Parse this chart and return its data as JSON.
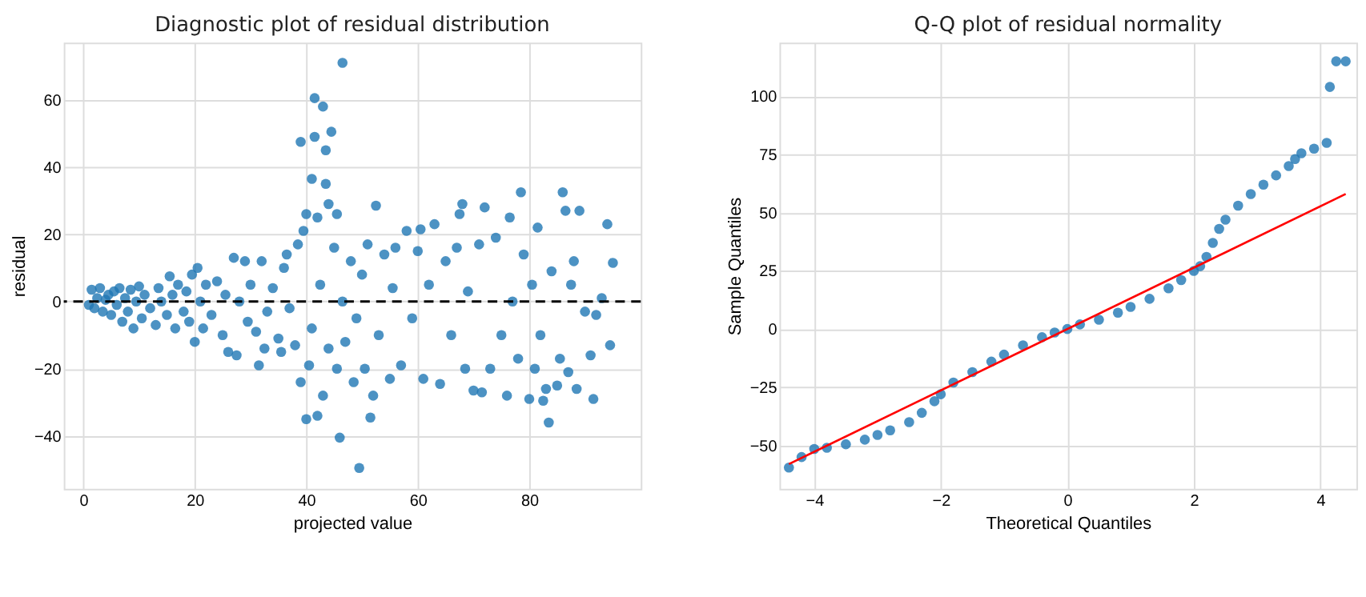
{
  "chart_data": [
    {
      "type": "scatter",
      "title": "Diagnostic plot of residual distribution",
      "xlabel": "projected value",
      "ylabel": "residual",
      "xlim": [
        -3.5,
        100
      ],
      "ylim": [
        -55.7,
        77
      ],
      "xticks": [
        0,
        20,
        40,
        60,
        80
      ],
      "yticks": [
        -40,
        -20,
        0,
        20,
        40,
        60
      ],
      "grid": true,
      "series": [
        {
          "marker": "circle",
          "color": "#1f77b4",
          "x": [
            1,
            1.5,
            2,
            2.5,
            3,
            3.5,
            4,
            4.5,
            5,
            5.5,
            6,
            6.5,
            7,
            7.5,
            8,
            8.5,
            9,
            9.5,
            10,
            10.5,
            11,
            12,
            13,
            13.5,
            14,
            15,
            15.5,
            16,
            16.5,
            17,
            18,
            18.5,
            19,
            19.5,
            20,
            20.5,
            21,
            21.5,
            22,
            23,
            24,
            25,
            25.5,
            26,
            27,
            27.5,
            28,
            29,
            29.5,
            30,
            31,
            31.5,
            32,
            32.5,
            33,
            34,
            35,
            35.5,
            36,
            36.5,
            37,
            38,
            38.5,
            39,
            39,
            39.5,
            40,
            40,
            40.5,
            41,
            41,
            41.5,
            41.5,
            42,
            42,
            42.5,
            43,
            43,
            43.5,
            43.5,
            44,
            44,
            44.5,
            45,
            45.5,
            45.5,
            46,
            46.5,
            46.5,
            47,
            48,
            48.5,
            49,
            49.5,
            50,
            50.5,
            51,
            51.5,
            52,
            52.5,
            53,
            54,
            55,
            55.5,
            56,
            57,
            58,
            59,
            60,
            60.5,
            61,
            62,
            63,
            64,
            65,
            66,
            67,
            67.5,
            68,
            68.5,
            69,
            70,
            71,
            71.5,
            72,
            73,
            74,
            75,
            76,
            76.5,
            77,
            78,
            78.5,
            79,
            80,
            80.5,
            81,
            81.5,
            82,
            82.5,
            83,
            83.5,
            84,
            85,
            85.5,
            86,
            86.5,
            87,
            87.5,
            88,
            88.5,
            89,
            90,
            91,
            91.5,
            92,
            93,
            94,
            94.5,
            95
          ],
          "values": [
            -1,
            3.5,
            -2,
            1,
            4,
            -3,
            0.5,
            2,
            -4,
            3,
            -1,
            4,
            -6,
            1,
            -3,
            3.5,
            -8,
            0,
            4.5,
            -5,
            2,
            -2,
            -7,
            4,
            0,
            -4,
            7.5,
            2,
            -8,
            5,
            -3,
            3,
            -6,
            8,
            -12,
            10,
            0,
            -8,
            5,
            -4,
            6,
            -10,
            2,
            -15,
            13,
            -16,
            0,
            12,
            -6,
            5,
            -9,
            -19,
            12,
            -14,
            -3,
            4,
            -11,
            -15,
            10,
            14,
            -2,
            -13,
            17,
            47.5,
            -24,
            21,
            26,
            -35,
            -19,
            36.5,
            -8,
            60.5,
            49,
            25,
            -34,
            5,
            58,
            -28,
            45,
            35,
            29,
            -14,
            50.5,
            16,
            26,
            -20,
            -40.5,
            71,
            0,
            -12,
            12,
            -24,
            -5,
            -49.5,
            8,
            -20,
            17,
            -34.5,
            -28,
            28.5,
            -10,
            14,
            -23,
            4,
            16,
            -19,
            21,
            -5,
            15,
            21.5,
            -23,
            5,
            23,
            -24.5,
            12,
            -10,
            16,
            26,
            29,
            -20,
            3,
            -26.5,
            17,
            -27,
            28,
            -20,
            19,
            -10,
            -28,
            25,
            0,
            -17,
            32.5,
            14,
            -29,
            5,
            -20,
            22,
            -10,
            -29.5,
            -26,
            -36,
            9,
            -25,
            -17,
            32.5,
            27,
            -21,
            5,
            12,
            -26,
            27,
            -3,
            -16,
            -29,
            -4,
            1,
            23,
            -13,
            11.5
          ]
        }
      ],
      "ref_lines": [
        {
          "axis": "y",
          "value": 0,
          "color": "#000000",
          "line_style": "dashed"
        }
      ]
    },
    {
      "type": "scatter",
      "title": "Q-Q plot of residual normality",
      "xlabel": "Theoretical Quantiles",
      "ylabel": "Sample Quantiles",
      "xlim": [
        -4.55,
        4.57
      ],
      "ylim": [
        -68.6,
        123
      ],
      "xticks": [
        -4,
        -2,
        0,
        2,
        4
      ],
      "yticks": [
        -50,
        -25,
        0,
        25,
        50,
        75,
        100
      ],
      "grid": true,
      "series": [
        {
          "marker": "circle",
          "color": "#1f77b4",
          "x": [
            -4.4,
            -4.2,
            -4.0,
            -3.8,
            -3.5,
            -3.2,
            -3.0,
            -2.8,
            -2.5,
            -2.3,
            -2.1,
            -2.0,
            -1.8,
            -1.5,
            -1.2,
            -1.0,
            -0.7,
            -0.4,
            -0.2,
            0,
            0.2,
            0.5,
            0.8,
            1.0,
            1.3,
            1.6,
            1.8,
            2.0,
            2.1,
            2.2,
            2.3,
            2.4,
            2.5,
            2.7,
            2.9,
            3.1,
            3.3,
            3.5,
            3.6,
            3.7,
            3.9,
            4.1,
            4.15,
            4.25,
            4.4
          ],
          "values": [
            -59.5,
            -55,
            -51.5,
            -51,
            -49.5,
            -47.5,
            -45.5,
            -43.5,
            -40,
            -36,
            -31,
            -28,
            -23,
            -18.5,
            -14,
            -11,
            -7,
            -3.5,
            -1.5,
            0,
            2,
            4,
            7,
            9.5,
            13,
            17.5,
            21,
            25,
            27,
            31,
            37,
            43,
            47,
            53,
            58,
            62,
            66,
            70,
            73,
            75.5,
            77.5,
            80,
            104,
            115,
            115
          ]
        },
        {
          "type": "line",
          "marker": "none",
          "color": "#ff0000",
          "line_style": "solid",
          "x": [
            -4.4,
            4.4
          ],
          "values": [
            -58,
            58
          ]
        }
      ]
    }
  ]
}
